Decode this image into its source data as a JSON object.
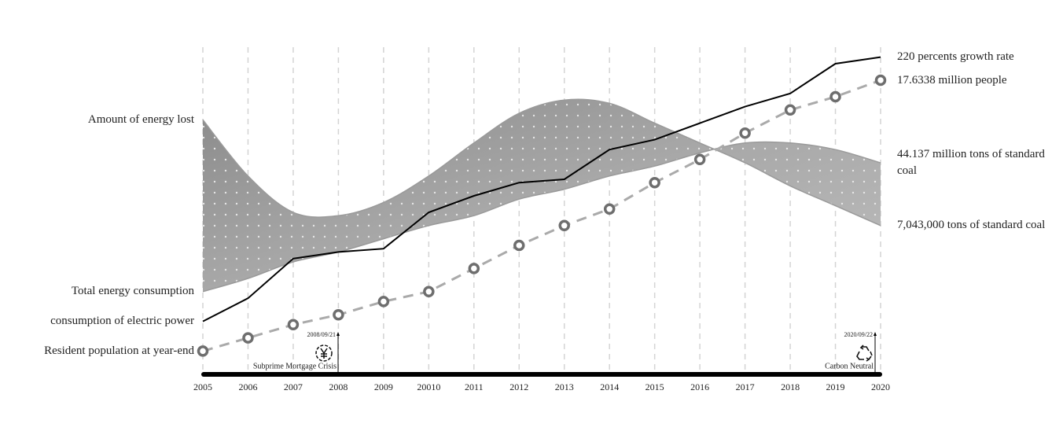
{
  "chart_data": {
    "type": "line",
    "categories": [
      "2005",
      "2006",
      "2007",
      "2008",
      "2009",
      "20010",
      "2011",
      "2012",
      "2013",
      "2014",
      "2015",
      "2016",
      "2017",
      "2018",
      "2019",
      "2020"
    ],
    "ylim": [
      0,
      100
    ],
    "grid": true,
    "bands": [
      {
        "name": "Amount of energy lost",
        "color": "#9a9a9a",
        "values": [
          78,
          61,
          50,
          49,
          53,
          61,
          71,
          80,
          84,
          83,
          77,
          71,
          65,
          58,
          52,
          46
        ],
        "end_label": "7,043,000 tons of standard coal"
      },
      {
        "name": "Total energy consumption",
        "color": "#9a9a9a",
        "values": [
          26,
          30,
          35,
          38,
          42,
          46,
          49,
          54,
          57,
          61,
          64,
          68,
          71,
          71,
          69,
          65
        ],
        "end_label": "44.137 million tons of standard coal"
      }
    ],
    "series": [
      {
        "name": "consumption of electric power",
        "color": "#000000",
        "line_style": "solid",
        "values": [
          17,
          24,
          36,
          38,
          39,
          50,
          55,
          59,
          60,
          69,
          72,
          77,
          82,
          86,
          95,
          97
        ],
        "end_label": "220 percents growth rate"
      },
      {
        "name": "Resident population at year-end",
        "color": "#aaaaaa",
        "line_style": "dashed",
        "marker": "circle",
        "values": [
          8,
          12,
          16,
          19,
          23,
          26,
          33,
          40,
          46,
          51,
          59,
          66,
          74,
          81,
          85,
          90
        ],
        "end_label": "17.6338 million people"
      }
    ],
    "events": [
      {
        "date": "2008/09/21",
        "label": "Subprime Mortgage Crisis"
      },
      {
        "date": "2020/09/22",
        "label": "Carbon Neutral"
      }
    ]
  }
}
